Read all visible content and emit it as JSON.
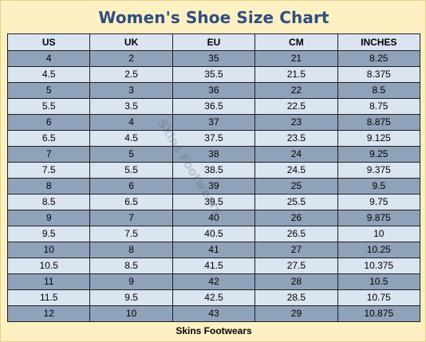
{
  "title": "Women's Shoe Size Chart",
  "watermark": "Skins Footwears",
  "footer": "Skins Footwears",
  "table": {
    "columns": [
      "US",
      "UK",
      "EU",
      "CM",
      "INCHES"
    ],
    "rows": [
      [
        "4",
        "2",
        "35",
        "21",
        "8.25"
      ],
      [
        "4.5",
        "2.5",
        "35.5",
        "21.5",
        "8.375"
      ],
      [
        "5",
        "3",
        "36",
        "22",
        "8.5"
      ],
      [
        "5.5",
        "3.5",
        "36.5",
        "22.5",
        "8.75"
      ],
      [
        "6",
        "4",
        "37",
        "23",
        "8.875"
      ],
      [
        "6.5",
        "4.5",
        "37.5",
        "23.5",
        "9.125"
      ],
      [
        "7",
        "5",
        "38",
        "24",
        "9.25"
      ],
      [
        "7.5",
        "5.5",
        "38.5",
        "24.5",
        "9.375"
      ],
      [
        "8",
        "6",
        "39",
        "25",
        "9.5"
      ],
      [
        "8.5",
        "6.5",
        "39.5",
        "25.5",
        "9.75"
      ],
      [
        "9",
        "7",
        "40",
        "26",
        "9.875"
      ],
      [
        "9.5",
        "7.5",
        "40.5",
        "26.5",
        "10"
      ],
      [
        "10",
        "8",
        "41",
        "27",
        "10.25"
      ],
      [
        "10.5",
        "8.5",
        "41.5",
        "27.5",
        "10.375"
      ],
      [
        "11",
        "9",
        "42",
        "28",
        "10.5"
      ],
      [
        "11.5",
        "9.5",
        "42.5",
        "28.5",
        "10.75"
      ],
      [
        "12",
        "10",
        "43",
        "29",
        "10.875"
      ]
    ]
  },
  "colors": {
    "background": "#fdf0c2",
    "title": "#2f4d82",
    "row_dark": "#8fa2ba",
    "row_light": "#dbe4f1",
    "grid": "#1f1f1f"
  }
}
